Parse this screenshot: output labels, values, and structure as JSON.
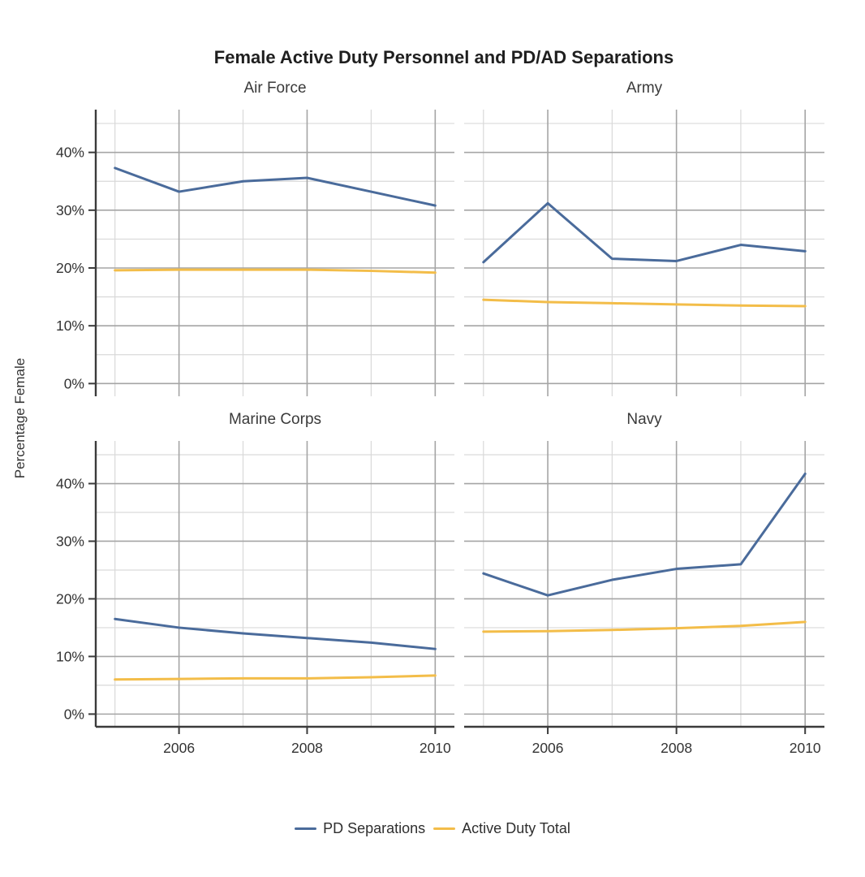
{
  "figure": {
    "title": "Female Active Duty Personnel and PD/AD Separations",
    "ylabel": "Percentage Female"
  },
  "legend": {
    "items": [
      {
        "label": "PD Separations",
        "color": "#4a6b9b"
      },
      {
        "label": "Active Duty Total",
        "color": "#f3bd49"
      }
    ]
  },
  "colors": {
    "pd_separations": "#4a6b9b",
    "active_duty_total": "#f3bd49",
    "major_grid": "#a5a5a5",
    "minor_grid": "#d9d9d9",
    "axis": "#3b3b3b",
    "tick_label": "#333333",
    "title": "#1f1f1f",
    "facet_title": "#3a3a3a"
  },
  "chart_data": {
    "type": "line",
    "title": "Female Active Duty Personnel and PD/AD Separations",
    "xlabel": "",
    "ylabel": "Percentage Female",
    "grid": true,
    "legend_position": "bottom",
    "x": [
      2005,
      2006,
      2007,
      2008,
      2009,
      2010
    ],
    "x_ticks": [
      2006,
      2008,
      2010
    ],
    "y_ticks": [
      0,
      10,
      20,
      30,
      40
    ],
    "y_minor_ticks": [
      5,
      15,
      25,
      35,
      45
    ],
    "y_tick_suffix": "%",
    "xlim": [
      2004.7,
      2010.3
    ],
    "ylim": [
      -2.2,
      47.4
    ],
    "facets": [
      {
        "name": "Air Force",
        "series": [
          {
            "name": "PD Separations",
            "values": [
              37.3,
              33.2,
              35.0,
              35.6,
              33.2,
              30.8
            ]
          },
          {
            "name": "Active Duty Total",
            "values": [
              19.6,
              19.7,
              19.7,
              19.7,
              19.5,
              19.2
            ]
          }
        ]
      },
      {
        "name": "Army",
        "series": [
          {
            "name": "PD Separations",
            "values": [
              21.0,
              31.2,
              21.6,
              21.2,
              24.0,
              22.9
            ]
          },
          {
            "name": "Active Duty Total",
            "values": [
              14.5,
              14.1,
              13.9,
              13.7,
              13.5,
              13.4
            ]
          }
        ]
      },
      {
        "name": "Marine Corps",
        "series": [
          {
            "name": "PD Separations",
            "values": [
              16.5,
              15.0,
              14.0,
              13.2,
              12.4,
              11.3
            ]
          },
          {
            "name": "Active Duty Total",
            "values": [
              6.0,
              6.1,
              6.2,
              6.2,
              6.4,
              6.7
            ]
          }
        ]
      },
      {
        "name": "Navy",
        "series": [
          {
            "name": "PD Separations",
            "values": [
              24.4,
              20.6,
              23.3,
              25.2,
              26.0,
              41.7
            ]
          },
          {
            "name": "Active Duty Total",
            "values": [
              14.3,
              14.4,
              14.6,
              14.9,
              15.3,
              16.0
            ]
          }
        ]
      }
    ],
    "series_colors": {
      "PD Separations": "#4a6b9b",
      "Active Duty Total": "#f3bd49"
    }
  }
}
